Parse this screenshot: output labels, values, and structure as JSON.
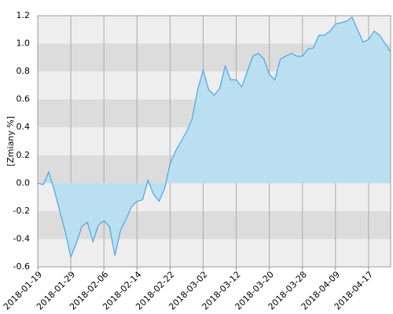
{
  "chart_data": {
    "type": "area",
    "y_label": "[Zmiany %]",
    "categories": [
      "2018-01-19",
      null,
      null,
      null,
      null,
      null,
      "2018-01-29",
      null,
      null,
      null,
      null,
      null,
      "2018-02-06",
      null,
      null,
      null,
      null,
      null,
      "2018-02-14",
      null,
      null,
      null,
      null,
      null,
      "2018-02-22",
      null,
      null,
      null,
      null,
      null,
      "2018-03-02",
      null,
      null,
      null,
      null,
      null,
      "2018-03-12",
      null,
      null,
      null,
      null,
      null,
      "2018-03-20",
      null,
      null,
      null,
      null,
      null,
      "2018-03-28",
      null,
      null,
      null,
      null,
      null,
      "2018-04-09",
      null,
      null,
      null,
      null,
      null,
      "2018-04-17",
      null,
      null,
      null,
      null
    ],
    "values": [
      0.0,
      -0.01,
      0.08,
      -0.05,
      -0.2,
      -0.35,
      -0.53,
      -0.43,
      -0.31,
      -0.28,
      -0.42,
      -0.3,
      -0.27,
      -0.31,
      -0.52,
      -0.34,
      -0.26,
      -0.17,
      -0.13,
      -0.12,
      0.02,
      -0.08,
      -0.13,
      -0.04,
      0.14,
      0.23,
      0.3,
      0.37,
      0.46,
      0.67,
      0.81,
      0.67,
      0.63,
      0.68,
      0.84,
      0.74,
      0.74,
      0.69,
      0.8,
      0.91,
      0.93,
      0.89,
      0.78,
      0.74,
      0.89,
      0.91,
      0.93,
      0.91,
      0.91,
      0.96,
      0.97,
      1.06,
      1.06,
      1.09,
      1.14,
      1.15,
      1.16,
      1.19,
      1.1,
      1.01,
      1.03,
      1.09,
      1.06,
      1.0,
      0.94
    ],
    "color": "#4ea6e0",
    "fill": "#b9dff0",
    "ylim": [
      -0.6,
      1.2
    ],
    "yticks": [
      -0.6,
      {
        "value": -0.4,
        "label": "-0.4"
      },
      -0.2,
      {
        "value": 0,
        "label": "0.0"
      },
      0.2,
      0.4,
      0.6,
      0.8,
      {
        "value": 1,
        "label": "1.0"
      },
      1.2
    ],
    "grid": true,
    "band_colors": [
      "#eeeeee",
      "#dcdcdc"
    ]
  }
}
